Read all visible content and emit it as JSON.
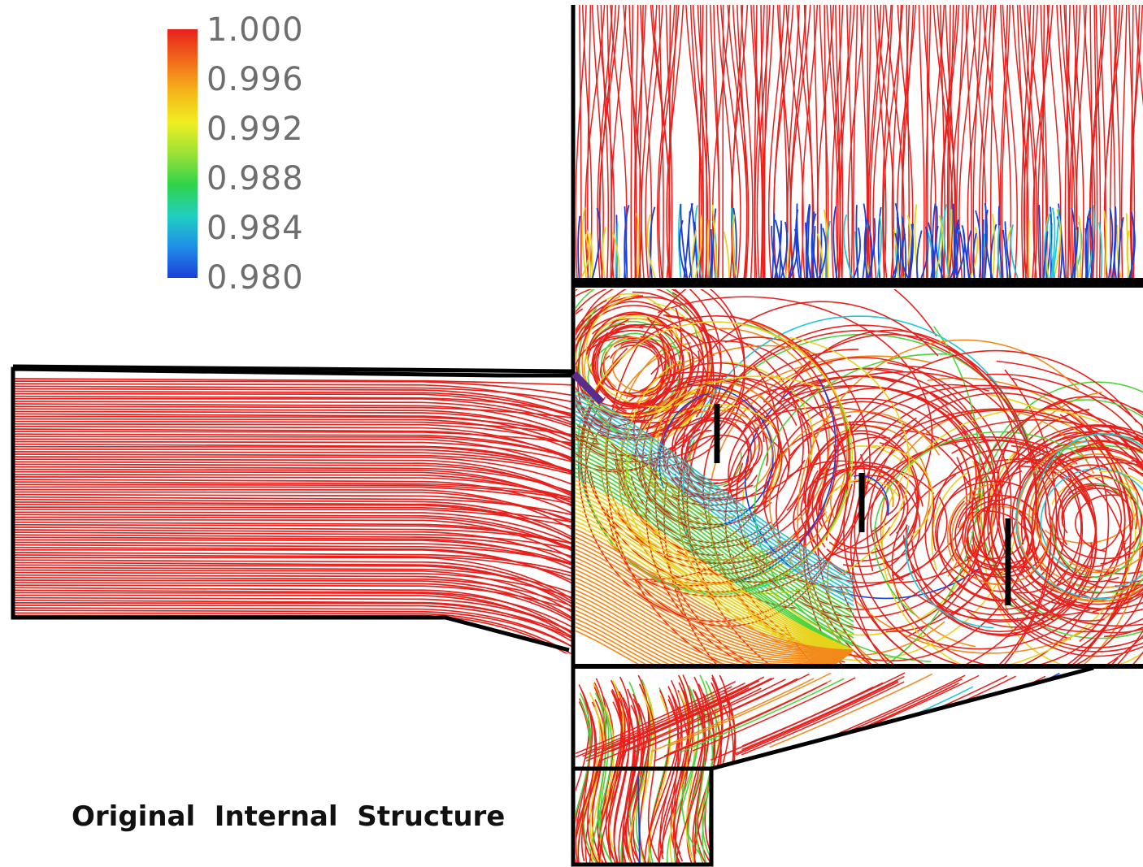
{
  "caption": "Original  Internal  Structure",
  "legend": {
    "labels": [
      "1.000",
      "0.996",
      "0.992",
      "0.988",
      "0.984",
      "0.980"
    ],
    "gradient_colors": [
      "#e8201c",
      "#f26a1b",
      "#f5b51a",
      "#f0ee22",
      "#9ae236",
      "#2fd34a",
      "#20d0c0",
      "#1f8fe8",
      "#1b3fd8"
    ]
  },
  "colors": {
    "outline": "#000000",
    "streamline_main": "#e8201c",
    "streamline_orange": "#f28a1c",
    "streamline_yellow": "#e8d31c",
    "streamline_green": "#4cd43a",
    "streamline_cyan": "#1fc9d6",
    "streamline_blue": "#1b3fd8",
    "baffle_accent": "#5a2d8c"
  }
}
